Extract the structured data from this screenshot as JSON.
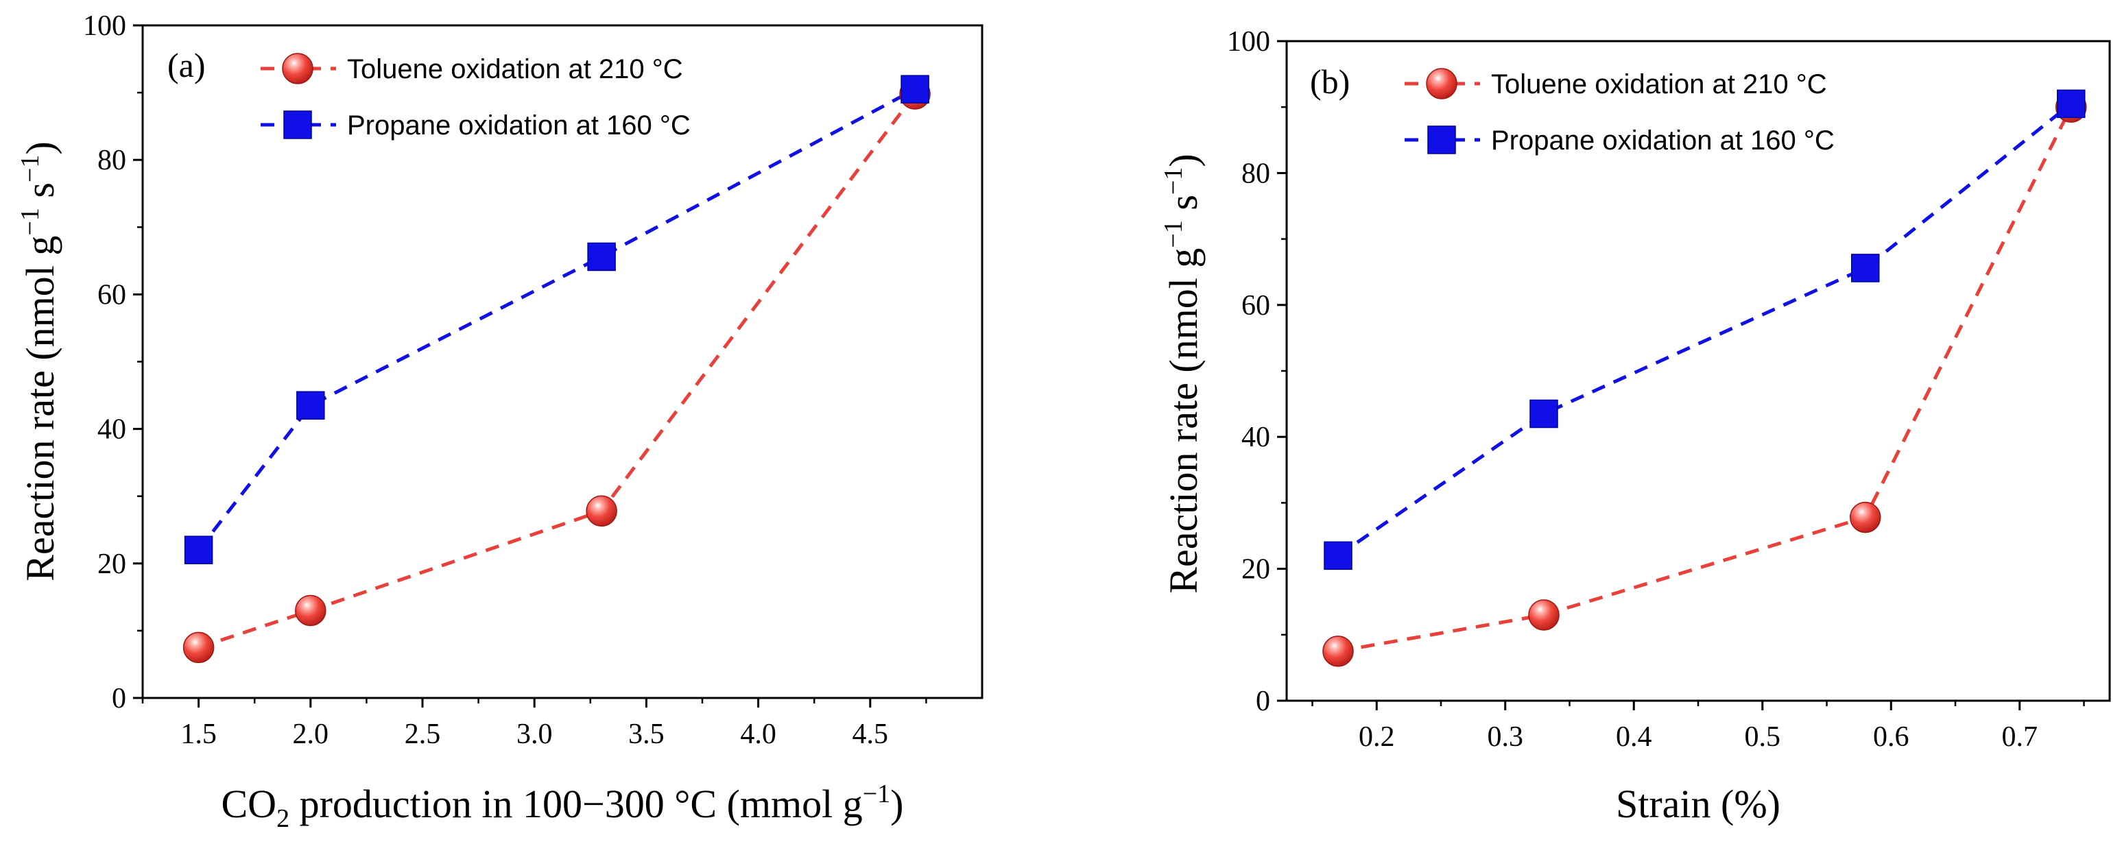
{
  "chart_data": [
    {
      "type": "line",
      "panel_label": "(a)",
      "x": [
        1.5,
        2.0,
        3.3,
        4.7
      ],
      "xlim": [
        1.25,
        5.0
      ],
      "ylim": [
        0,
        100
      ],
      "xticks": [
        1.5,
        2.0,
        2.5,
        3.0,
        3.5,
        4.0,
        4.5
      ],
      "xtick_labels": [
        "1.5",
        "2.0",
        "2.5",
        "3.0",
        "3.5",
        "4.0",
        "4.5"
      ],
      "yticks": [
        0,
        20,
        40,
        60,
        80,
        100
      ],
      "ytick_labels": [
        "0",
        "20",
        "40",
        "60",
        "80",
        "100"
      ],
      "xlabel": {
        "pre": "CO",
        "sub": "2",
        "mid": " production  in 100−300 °C (mmol g",
        "sup": "−1",
        "post": ")"
      },
      "ylabel": {
        "pre": "Reaction rate (nmol g",
        "sup1": "−1",
        "mid": " s",
        "sup2": "−1",
        "post": ")"
      },
      "legend_position": "top-left",
      "series": [
        {
          "name": "Toluene oxidation at 210 °C",
          "color": "#e8403a",
          "marker": "sphere",
          "line": "dashed",
          "values": [
            7.5,
            13.0,
            27.8,
            89.8
          ]
        },
        {
          "name": "Propane oxidation at 160 °C",
          "color": "#1010e6",
          "marker": "square",
          "line": "dashed",
          "values": [
            22.0,
            43.5,
            65.6,
            90.5
          ]
        }
      ]
    },
    {
      "type": "line",
      "panel_label": "(b)",
      "x": [
        0.17,
        0.33,
        0.58,
        0.74
      ],
      "xlim": [
        0.13,
        0.77
      ],
      "ylim": [
        0,
        100
      ],
      "xticks": [
        0.2,
        0.3,
        0.4,
        0.5,
        0.6,
        0.7
      ],
      "xtick_labels": [
        "0.2",
        "0.3",
        "0.4",
        "0.5",
        "0.6",
        "0.7"
      ],
      "yticks": [
        0,
        20,
        40,
        60,
        80,
        100
      ],
      "ytick_labels": [
        "0",
        "20",
        "40",
        "60",
        "80",
        "100"
      ],
      "xlabel": {
        "pre": "Strain (%)",
        "sub": "",
        "mid": "",
        "sup": "",
        "post": ""
      },
      "ylabel": {
        "pre": "Reaction rate (nmol g",
        "sup1": "−1",
        "mid": " s",
        "sup2": "−1",
        "post": ")"
      },
      "legend_position": "top-left",
      "series": [
        {
          "name": "Toluene oxidation at 210 °C",
          "color": "#e8403a",
          "marker": "sphere",
          "line": "dashed",
          "values": [
            7.5,
            13.0,
            27.8,
            90.0
          ]
        },
        {
          "name": "Propane oxidation at 160 °C",
          "color": "#1010e6",
          "marker": "square",
          "line": "dashed",
          "values": [
            22.0,
            43.5,
            65.6,
            90.5
          ]
        }
      ]
    }
  ]
}
